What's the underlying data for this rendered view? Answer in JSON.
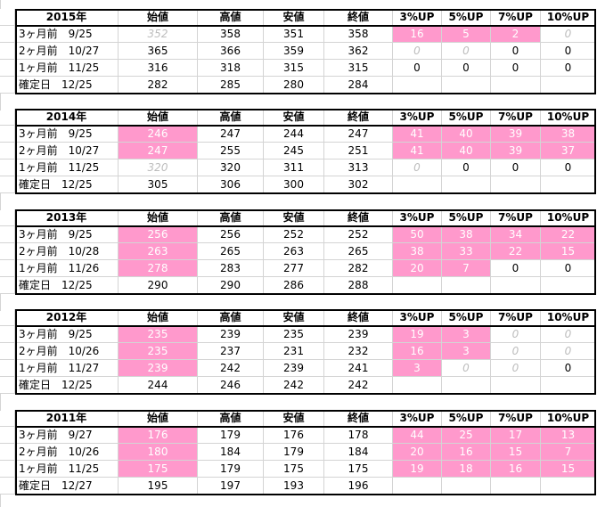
{
  "columns": [
    "始値",
    "高値",
    "安値",
    "終値",
    "3%UP",
    "5%UP",
    "7%UP",
    "10%UP"
  ],
  "blocks": [
    {
      "year": "2015年",
      "rows": [
        {
          "label": "3ヶ月前　9/25",
          "cells": [
            {
              "v": "352",
              "style": "ghost"
            },
            {
              "v": "358"
            },
            {
              "v": "351"
            },
            {
              "v": "358"
            },
            {
              "v": "16",
              "style": "pink"
            },
            {
              "v": "5",
              "style": "pink"
            },
            {
              "v": "2",
              "style": "pink"
            },
            {
              "v": "0",
              "style": "ghost"
            }
          ]
        },
        {
          "label": "2ヶ月前　10/27",
          "cells": [
            {
              "v": "365"
            },
            {
              "v": "366"
            },
            {
              "v": "359"
            },
            {
              "v": "362"
            },
            {
              "v": "0",
              "style": "ghost"
            },
            {
              "v": "0",
              "style": "ghost"
            },
            {
              "v": "0"
            },
            {
              "v": "0"
            }
          ]
        },
        {
          "label": "1ヶ月前　11/25",
          "cells": [
            {
              "v": "316"
            },
            {
              "v": "318"
            },
            {
              "v": "315"
            },
            {
              "v": "315"
            },
            {
              "v": "0"
            },
            {
              "v": "0"
            },
            {
              "v": "0"
            },
            {
              "v": "0"
            }
          ]
        },
        {
          "label": "確定日　12/25",
          "cells": [
            {
              "v": "282"
            },
            {
              "v": "285"
            },
            {
              "v": "280"
            },
            {
              "v": "284"
            },
            {
              "v": ""
            },
            {
              "v": ""
            },
            {
              "v": ""
            },
            {
              "v": ""
            }
          ]
        }
      ]
    },
    {
      "year": "2014年",
      "rows": [
        {
          "label": "3ヶ月前　9/25",
          "cells": [
            {
              "v": "246",
              "style": "pink"
            },
            {
              "v": "247"
            },
            {
              "v": "244"
            },
            {
              "v": "247"
            },
            {
              "v": "41",
              "style": "pink"
            },
            {
              "v": "40",
              "style": "pink"
            },
            {
              "v": "39",
              "style": "pink"
            },
            {
              "v": "38",
              "style": "pink"
            }
          ]
        },
        {
          "label": "2ヶ月前　10/27",
          "cells": [
            {
              "v": "247",
              "style": "pink"
            },
            {
              "v": "255"
            },
            {
              "v": "245"
            },
            {
              "v": "251"
            },
            {
              "v": "41",
              "style": "pink"
            },
            {
              "v": "40",
              "style": "pink"
            },
            {
              "v": "39",
              "style": "pink"
            },
            {
              "v": "37",
              "style": "pink"
            }
          ]
        },
        {
          "label": "1ヶ月前　11/25",
          "cells": [
            {
              "v": "320",
              "style": "ghost"
            },
            {
              "v": "320"
            },
            {
              "v": "311"
            },
            {
              "v": "313"
            },
            {
              "v": "0",
              "style": "ghost"
            },
            {
              "v": "0"
            },
            {
              "v": "0"
            },
            {
              "v": "0"
            }
          ]
        },
        {
          "label": "確定日　12/25",
          "cells": [
            {
              "v": "305"
            },
            {
              "v": "306"
            },
            {
              "v": "300"
            },
            {
              "v": "302"
            },
            {
              "v": ""
            },
            {
              "v": ""
            },
            {
              "v": ""
            },
            {
              "v": ""
            }
          ]
        }
      ]
    },
    {
      "year": "2013年",
      "rows": [
        {
          "label": "3ヶ月前　9/25",
          "cells": [
            {
              "v": "256",
              "style": "pink"
            },
            {
              "v": "256"
            },
            {
              "v": "252"
            },
            {
              "v": "252"
            },
            {
              "v": "50",
              "style": "pink"
            },
            {
              "v": "38",
              "style": "pink"
            },
            {
              "v": "34",
              "style": "pink"
            },
            {
              "v": "22",
              "style": "pink"
            }
          ]
        },
        {
          "label": "2ヶ月前　10/28",
          "cells": [
            {
              "v": "263",
              "style": "pink"
            },
            {
              "v": "265"
            },
            {
              "v": "263"
            },
            {
              "v": "265"
            },
            {
              "v": "38",
              "style": "pink"
            },
            {
              "v": "33",
              "style": "pink"
            },
            {
              "v": "22",
              "style": "pink"
            },
            {
              "v": "15",
              "style": "pink"
            }
          ]
        },
        {
          "label": "1ヶ月前　11/26",
          "cells": [
            {
              "v": "278",
              "style": "pink"
            },
            {
              "v": "283"
            },
            {
              "v": "277"
            },
            {
              "v": "282"
            },
            {
              "v": "20",
              "style": "pink"
            },
            {
              "v": "7",
              "style": "pink"
            },
            {
              "v": "0"
            },
            {
              "v": "0"
            }
          ]
        },
        {
          "label": "確定日　12/25",
          "cells": [
            {
              "v": "290"
            },
            {
              "v": "290"
            },
            {
              "v": "286"
            },
            {
              "v": "288"
            },
            {
              "v": ""
            },
            {
              "v": ""
            },
            {
              "v": ""
            },
            {
              "v": ""
            }
          ]
        }
      ]
    },
    {
      "year": "2012年",
      "rows": [
        {
          "label": "3ヶ月前　9/25",
          "cells": [
            {
              "v": "235",
              "style": "pink"
            },
            {
              "v": "239"
            },
            {
              "v": "235"
            },
            {
              "v": "239"
            },
            {
              "v": "19",
              "style": "pink"
            },
            {
              "v": "3",
              "style": "pink"
            },
            {
              "v": "0",
              "style": "ghost"
            },
            {
              "v": "0",
              "style": "ghost"
            }
          ]
        },
        {
          "label": "2ヶ月前　10/26",
          "cells": [
            {
              "v": "235",
              "style": "pink"
            },
            {
              "v": "237"
            },
            {
              "v": "231"
            },
            {
              "v": "232"
            },
            {
              "v": "16",
              "style": "pink"
            },
            {
              "v": "3",
              "style": "pink"
            },
            {
              "v": "0",
              "style": "ghost"
            },
            {
              "v": "0",
              "style": "ghost"
            }
          ]
        },
        {
          "label": "1ヶ月前　11/27",
          "cells": [
            {
              "v": "239",
              "style": "pink"
            },
            {
              "v": "242"
            },
            {
              "v": "239"
            },
            {
              "v": "241"
            },
            {
              "v": "3",
              "style": "pink"
            },
            {
              "v": "0",
              "style": "ghost"
            },
            {
              "v": "0",
              "style": "ghost"
            },
            {
              "v": "0"
            }
          ]
        },
        {
          "label": "確定日　12/25",
          "cells": [
            {
              "v": "244"
            },
            {
              "v": "246"
            },
            {
              "v": "242"
            },
            {
              "v": "242"
            },
            {
              "v": ""
            },
            {
              "v": ""
            },
            {
              "v": ""
            },
            {
              "v": ""
            }
          ]
        }
      ]
    },
    {
      "year": "2011年",
      "rows": [
        {
          "label": "3ヶ月前　9/27",
          "cells": [
            {
              "v": "176",
              "style": "pink"
            },
            {
              "v": "179"
            },
            {
              "v": "176"
            },
            {
              "v": "178"
            },
            {
              "v": "44",
              "style": "pink"
            },
            {
              "v": "25",
              "style": "pink"
            },
            {
              "v": "17",
              "style": "pink"
            },
            {
              "v": "13",
              "style": "pink"
            }
          ]
        },
        {
          "label": "2ヶ月前　10/26",
          "cells": [
            {
              "v": "180",
              "style": "pink"
            },
            {
              "v": "184"
            },
            {
              "v": "179"
            },
            {
              "v": "184"
            },
            {
              "v": "20",
              "style": "pink"
            },
            {
              "v": "16",
              "style": "pink"
            },
            {
              "v": "15",
              "style": "pink"
            },
            {
              "v": "7",
              "style": "pink"
            }
          ]
        },
        {
          "label": "1ヶ月前　11/25",
          "cells": [
            {
              "v": "175",
              "style": "pink"
            },
            {
              "v": "179"
            },
            {
              "v": "175"
            },
            {
              "v": "175"
            },
            {
              "v": "19",
              "style": "pink"
            },
            {
              "v": "18",
              "style": "pink"
            },
            {
              "v": "16",
              "style": "pink"
            },
            {
              "v": "15",
              "style": "pink"
            }
          ]
        },
        {
          "label": "確定日　12/27",
          "cells": [
            {
              "v": "195"
            },
            {
              "v": "197"
            },
            {
              "v": "193"
            },
            {
              "v": "196"
            },
            {
              "v": ""
            },
            {
              "v": ""
            },
            {
              "v": ""
            },
            {
              "v": ""
            }
          ]
        }
      ]
    }
  ],
  "colors": {
    "highlight": "#ff99cc",
    "grid": "#d4d4d4",
    "border": "#000000"
  }
}
